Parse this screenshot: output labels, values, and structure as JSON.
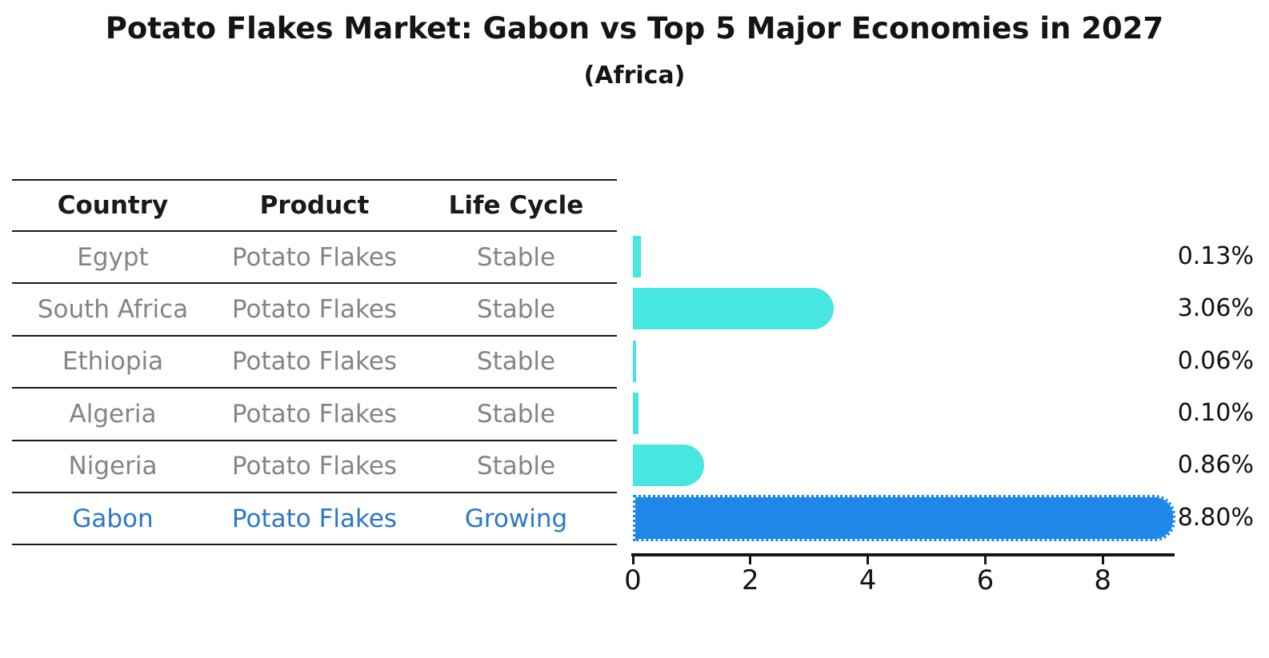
{
  "title": "Potato Flakes Market: Gabon vs Top 5 Major Economies in 2027",
  "subtitle": "(Africa)",
  "table": {
    "headers": [
      "Country",
      "Product",
      "Life Cycle"
    ],
    "rows": [
      {
        "country": "Egypt",
        "product": "Potato Flakes",
        "life_cycle": "Stable"
      },
      {
        "country": "South Africa",
        "product": "Potato Flakes",
        "life_cycle": "Stable"
      },
      {
        "country": "Ethiopia",
        "product": "Potato Flakes",
        "life_cycle": "Stable"
      },
      {
        "country": "Algeria",
        "product": "Potato Flakes",
        "life_cycle": "Stable"
      },
      {
        "country": "Nigeria",
        "product": "Potato Flakes",
        "life_cycle": "Stable"
      },
      {
        "country": "Gabon",
        "product": "Potato Flakes",
        "life_cycle": "Growing"
      }
    ]
  },
  "chart_data": {
    "type": "bar",
    "orientation": "horizontal",
    "title": "Potato Flakes Market: Gabon vs Top 5 Major Economies in 2027",
    "subtitle": "(Africa)",
    "categories": [
      "Egypt",
      "South Africa",
      "Ethiopia",
      "Algeria",
      "Nigeria",
      "Gabon"
    ],
    "values": [
      0.13,
      3.06,
      0.06,
      0.1,
      0.86,
      8.8
    ],
    "value_labels": [
      "0.13%",
      "3.06%",
      "0.06%",
      "0.10%",
      "0.86%",
      "8.80%"
    ],
    "x_ticks": [
      0,
      2,
      4,
      6,
      8
    ],
    "xlim": [
      0,
      9.25
    ],
    "grid": false,
    "legend": false,
    "highlight_index": 5,
    "colors": {
      "bar_default": "#47E6E1",
      "bar_highlight": "#1E87E8",
      "highlight_text": "#2B78C8",
      "body_text": "#848484",
      "axis_text": "#141414"
    }
  }
}
